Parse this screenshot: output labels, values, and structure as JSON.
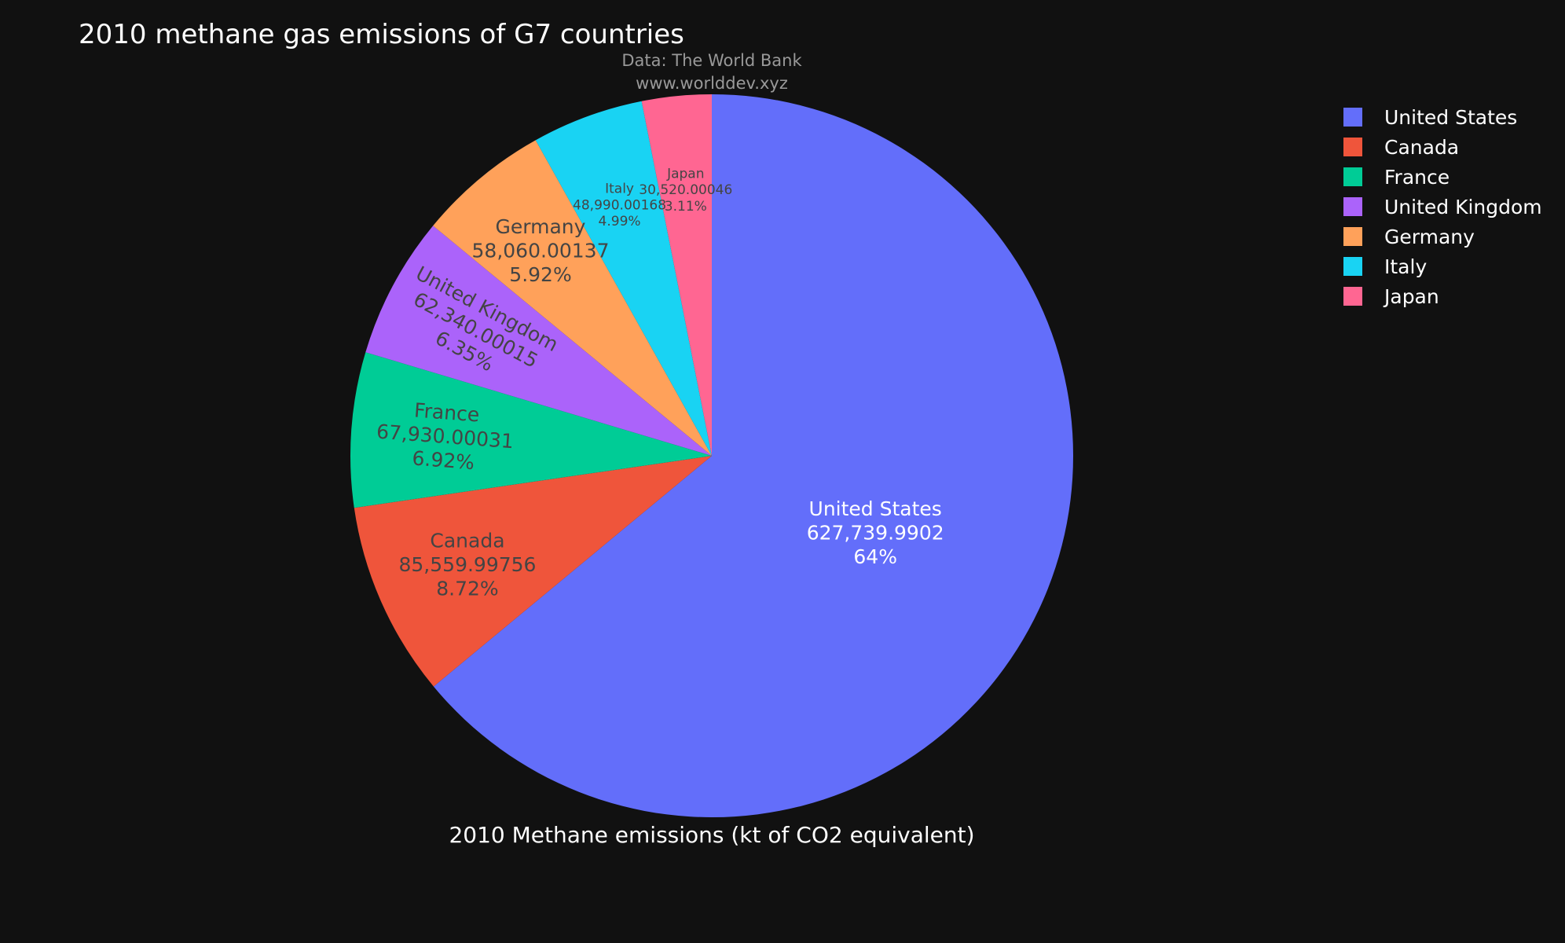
{
  "chart_data": {
    "type": "pie",
    "title": "2010 methane gas emissions of G7 countries",
    "annotation_lines": [
      "Data: The World Bank",
      "www.worlddev.xyz"
    ],
    "bottom_label": "2010 Methane emissions (kt of CO2 equivalent)",
    "legend_position": "top-right",
    "slices": [
      {
        "label": "United States",
        "value": 627739.9902,
        "value_text": "627,739.9902",
        "percent_text": "64%",
        "color": "#636efa",
        "text_color": "#ffffff"
      },
      {
        "label": "Canada",
        "value": 85559.99756,
        "value_text": "85,559.99756",
        "percent_text": "8.72%",
        "color": "#ef553b",
        "text_color": "#444444"
      },
      {
        "label": "France",
        "value": 67930.00031,
        "value_text": "67,930.00031",
        "percent_text": "6.92%",
        "color": "#00cc96",
        "text_color": "#444444"
      },
      {
        "label": "United Kingdom",
        "value": 62340.00015,
        "value_text": "62,340.00015",
        "percent_text": "6.35%",
        "color": "#ab63fa",
        "text_color": "#444444"
      },
      {
        "label": "Germany",
        "value": 58060.00137,
        "value_text": "58,060.00137",
        "percent_text": "5.92%",
        "color": "#ffa15a",
        "text_color": "#444444"
      },
      {
        "label": "Italy",
        "value": 48990.00168,
        "value_text": "48,990.00168",
        "percent_text": "4.99%",
        "color": "#19d3f3",
        "text_color": "#444444"
      },
      {
        "label": "Japan",
        "value": 30520.00046,
        "value_text": "30,520.00046",
        "percent_text": "3.11%",
        "color": "#ff6692",
        "text_color": "#444444"
      }
    ]
  }
}
